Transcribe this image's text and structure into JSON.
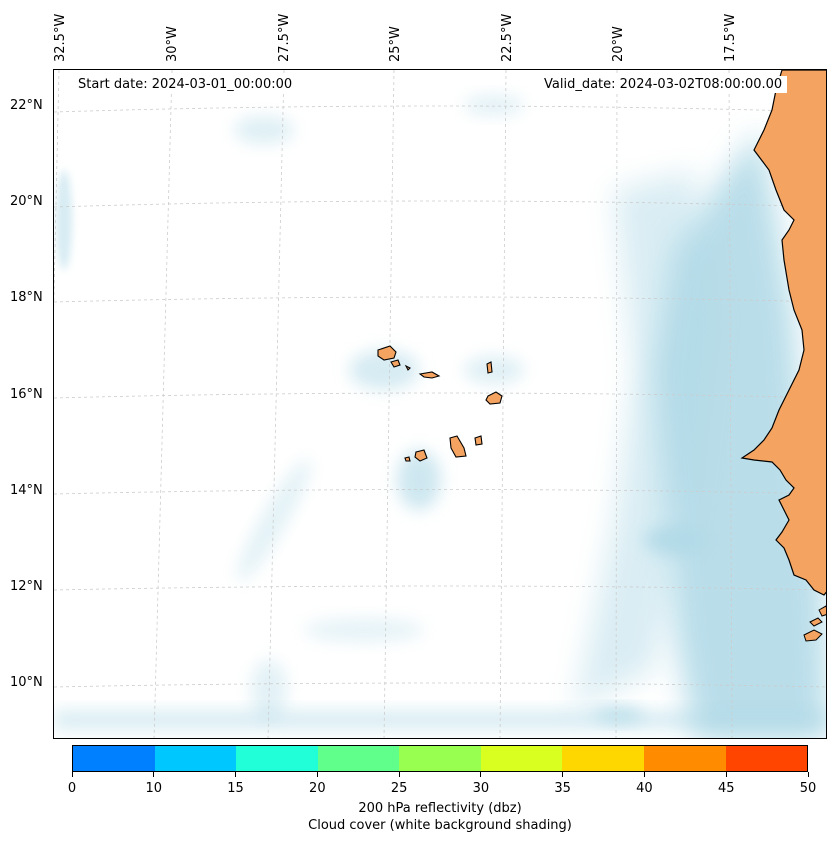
{
  "info": {
    "start_date": "Start date: 2024-03-01_00:00:00",
    "valid_date": "Valid_date: 2024-03-02T08:00:00.00"
  },
  "longitude_labels": [
    "32.5°W",
    "30°W",
    "27.5°W",
    "25°W",
    "22.5°W",
    "20°W",
    "17.5°W"
  ],
  "latitude_labels": [
    "22°N",
    "20°N",
    "18°N",
    "16°N",
    "14°N",
    "12°N",
    "10°N"
  ],
  "colorbar": {
    "ticks": [
      "0",
      "10",
      "15",
      "20",
      "25",
      "30",
      "35",
      "40",
      "45",
      "50"
    ],
    "colors": [
      "#0080ff",
      "#00c8ff",
      "#20ffd8",
      "#60ff8c",
      "#98ff50",
      "#d8ff20",
      "#ffd700",
      "#ff8c00",
      "#ff4500"
    ],
    "label": "200 hPa reflectivity (dbz)",
    "sublabel": "Cloud cover (white background shading)"
  },
  "colors": {
    "land": "#f4a460",
    "cloud": "#add8e6",
    "grid": "#cccccc",
    "coast": "#000000"
  }
}
